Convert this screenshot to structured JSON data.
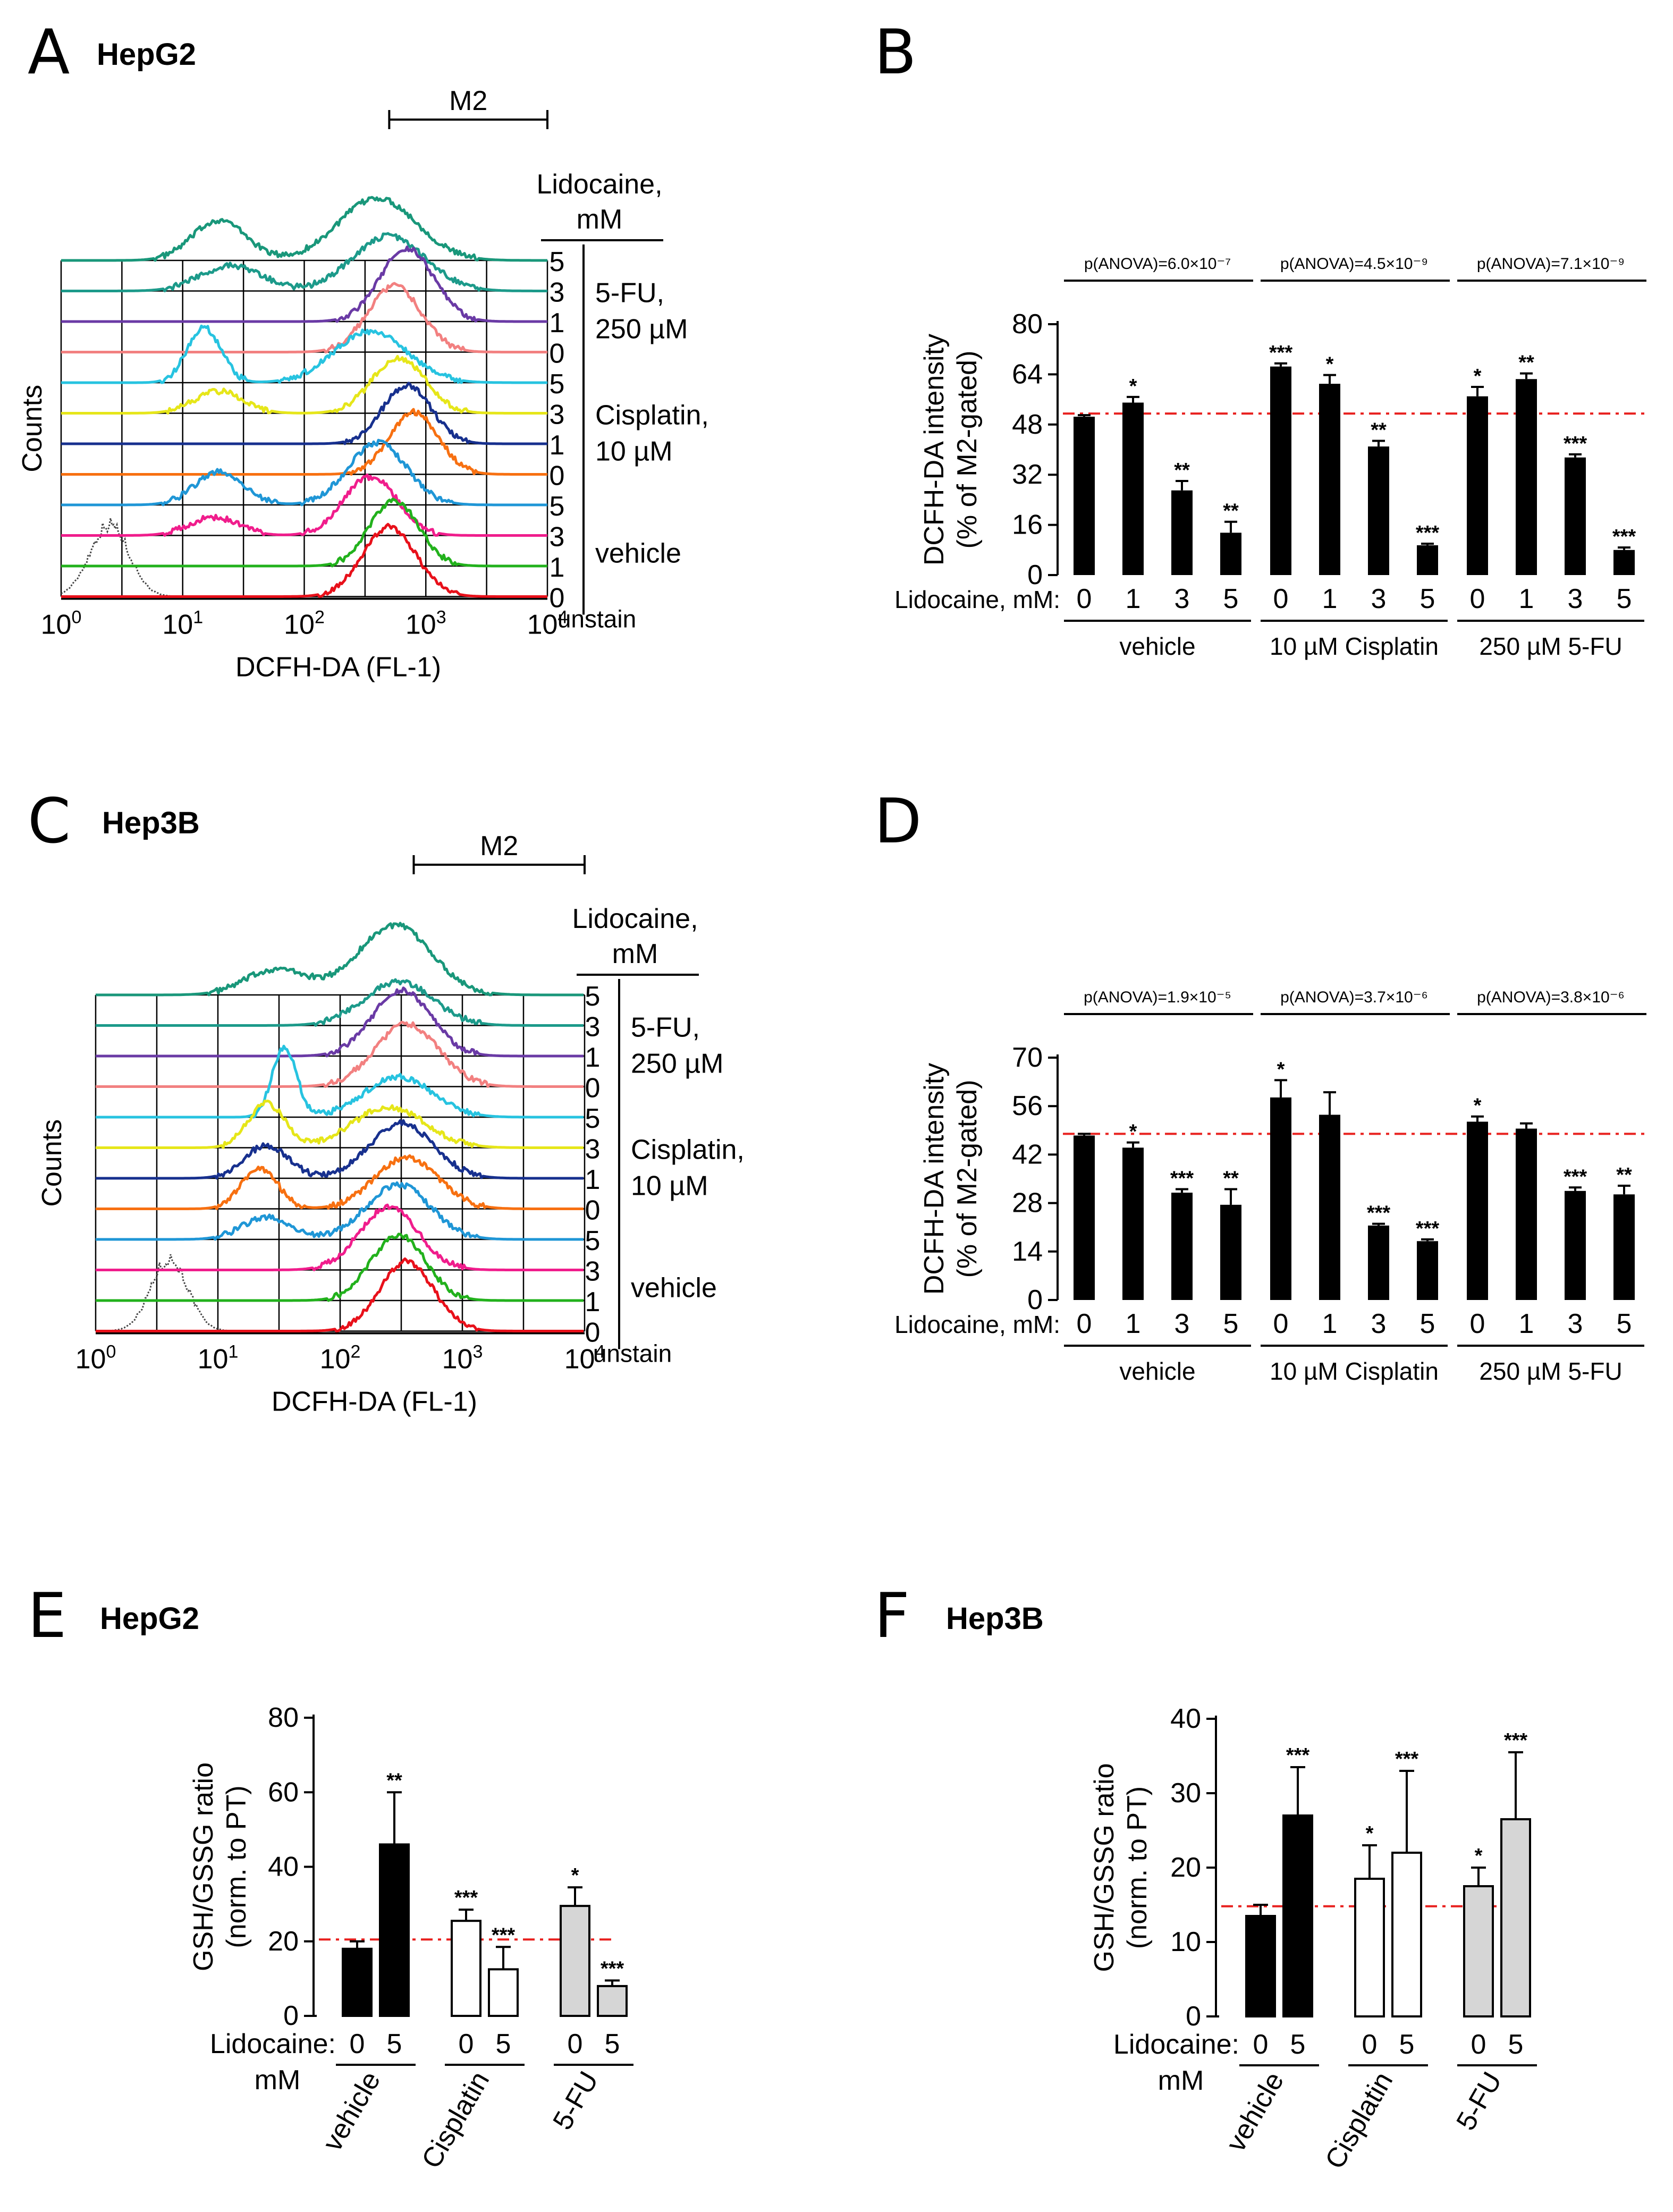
{
  "panels": {
    "A": {
      "letter": "A",
      "title": "HepG2"
    },
    "B": {
      "letter": "B"
    },
    "C": {
      "letter": "C",
      "title": "Hep3B"
    },
    "D": {
      "letter": "D"
    },
    "E": {
      "letter": "E",
      "title": "HepG2"
    },
    "F": {
      "letter": "F",
      "title": "Hep3B"
    }
  },
  "colors": {
    "vehicle_0": "#e8101a",
    "vehicle_1": "#22b11c",
    "vehicle_3": "#f01d8c",
    "vehicle_5": "#1f96d6",
    "cisplatin_0": "#f77011",
    "cisplatin_1": "#17308e",
    "cisplatin_3": "#e6e619",
    "cisplatin_5": "#27c3e0",
    "fu_0": "#f28080",
    "fu_1": "#6a3aa5",
    "fu_3": "#1c9a8a",
    "fu_5": "#19977a",
    "unstain": "#444444",
    "bar_black": "#000000",
    "bar_white": "#ffffff",
    "bar_gray": "#d6d6d6",
    "reference_line": "#e8201e"
  },
  "chart_data": [
    {
      "panel": "A",
      "type": "histogram",
      "title": "HepG2",
      "xlabel": "DCFH-DA (FL-1)",
      "ylabel": "Counts",
      "x_scale": "log",
      "xlim": [
        1,
        10000
      ],
      "x_tick_labels": [
        "10^0",
        "10^1",
        "10^2",
        "10^3",
        "10^4"
      ],
      "gate": {
        "label": "M2",
        "range": [
          500,
          10000
        ]
      },
      "legend_header": "Lidocaine, mM",
      "legend_groups": [
        {
          "label_1": "5-FU,",
          "label_2": "250 µM",
          "doses": [
            "5",
            "3",
            "1",
            "0"
          ]
        },
        {
          "label_1": "Cisplatin,",
          "label_2": "10 µM",
          "doses": [
            "5",
            "3",
            "1",
            "0"
          ]
        },
        {
          "label_1": "vehicle",
          "label_2": "",
          "doses": [
            "5",
            "3",
            "1",
            "0"
          ]
        }
      ],
      "unstain_label": "unstain",
      "series": [
        {
          "name": "5-FU 5 mM",
          "color_key": "fu_5",
          "peaks": [
            {
              "center": 20,
              "height": 0.55,
              "width": 0.22
            },
            {
              "center": 400,
              "height": 0.85,
              "width": 0.32
            }
          ]
        },
        {
          "name": "5-FU 3 mM",
          "color_key": "fu_3",
          "peaks": [
            {
              "center": 25,
              "height": 0.35,
              "width": 0.25
            },
            {
              "center": 500,
              "height": 0.75,
              "width": 0.3
            }
          ]
        },
        {
          "name": "5-FU 1 mM",
          "color_key": "fu_1",
          "peaks": [
            {
              "center": 700,
              "height": 1.0,
              "width": 0.22
            }
          ]
        },
        {
          "name": "5-FU 0 mM",
          "color_key": "fu_0",
          "peaks": [
            {
              "center": 550,
              "height": 0.9,
              "width": 0.22
            }
          ]
        },
        {
          "name": "Cisplatin 5 mM",
          "color_key": "cisplatin_5",
          "peaks": [
            {
              "center": 15,
              "height": 0.75,
              "width": 0.14
            },
            {
              "center": 350,
              "height": 0.7,
              "width": 0.3
            }
          ]
        },
        {
          "name": "Cisplatin 3 mM",
          "color_key": "cisplatin_3",
          "peaks": [
            {
              "center": 20,
              "height": 0.3,
              "width": 0.2
            },
            {
              "center": 600,
              "height": 0.75,
              "width": 0.22
            }
          ]
        },
        {
          "name": "Cisplatin 1 mM",
          "color_key": "cisplatin_1",
          "peaks": [
            {
              "center": 700,
              "height": 0.8,
              "width": 0.2
            }
          ]
        },
        {
          "name": "Cisplatin 0 mM",
          "color_key": "cisplatin_0",
          "peaks": [
            {
              "center": 800,
              "height": 0.85,
              "width": 0.2
            }
          ]
        },
        {
          "name": "vehicle 5 mM",
          "color_key": "vehicle_5",
          "peaks": [
            {
              "center": 20,
              "height": 0.45,
              "width": 0.2
            },
            {
              "center": 400,
              "height": 0.85,
              "width": 0.24
            }
          ]
        },
        {
          "name": "vehicle 3 mM",
          "color_key": "vehicle_3",
          "peaks": [
            {
              "center": 18,
              "height": 0.25,
              "width": 0.2
            },
            {
              "center": 350,
              "height": 0.8,
              "width": 0.22
            }
          ]
        },
        {
          "name": "vehicle 1 mM",
          "color_key": "vehicle_1",
          "peaks": [
            {
              "center": 550,
              "height": 0.9,
              "width": 0.2
            }
          ]
        },
        {
          "name": "vehicle 0 mM",
          "color_key": "vehicle_0",
          "peaks": [
            {
              "center": 500,
              "height": 0.95,
              "width": 0.22
            }
          ]
        }
      ],
      "unstain": {
        "center": 2.5,
        "height": 1.0,
        "width": 0.16
      }
    },
    {
      "panel": "B",
      "type": "bar",
      "ylabel_1": "DCFH-DA intensity",
      "ylabel_2": "(% of M2-gated)",
      "ylim": [
        0,
        80
      ],
      "yticks": [
        0,
        16,
        32,
        48,
        64,
        80
      ],
      "x_prefix": "Lidocaine, mM:",
      "categories": [
        "0",
        "1",
        "3",
        "5",
        "0",
        "1",
        "3",
        "5",
        "0",
        "1",
        "3",
        "5"
      ],
      "values": [
        50.5,
        55,
        27,
        13.5,
        66.5,
        61,
        41,
        9.5,
        57,
        62.5,
        37.5,
        8
      ],
      "errors": [
        0.5,
        1.8,
        3,
        3.5,
        1,
        2.8,
        1.8,
        0.5,
        3,
        1.8,
        1,
        0.8
      ],
      "annotations": [
        "",
        "*",
        "**",
        "**",
        "***",
        "*",
        "**",
        "***",
        "*",
        "**",
        "***",
        "***"
      ],
      "reference_line": 51.5,
      "groups": [
        {
          "label": "vehicle",
          "anova": "p(ANOVA)=6.0×10⁻⁷"
        },
        {
          "label": "10 µM Cisplatin",
          "anova": "p(ANOVA)=4.5×10⁻⁹"
        },
        {
          "label": "250 µM 5-FU",
          "anova": "p(ANOVA)=7.1×10⁻⁹"
        }
      ]
    },
    {
      "panel": "C",
      "type": "histogram",
      "title": "Hep3B",
      "xlabel": "DCFH-DA (FL-1)",
      "ylabel": "Counts",
      "x_scale": "log",
      "xlim": [
        1,
        10000
      ],
      "x_tick_labels": [
        "10^0",
        "10^1",
        "10^2",
        "10^3",
        "10^4"
      ],
      "gate": {
        "label": "M2",
        "range": [
          400,
          10000
        ]
      },
      "legend_header": "Lidocaine, mM",
      "legend_groups": [
        {
          "label_1": "5-FU,",
          "label_2": "250 µM",
          "doses": [
            "5",
            "3",
            "1",
            "0"
          ]
        },
        {
          "label_1": "Cisplatin,",
          "label_2": "10 µM",
          "doses": [
            "5",
            "3",
            "1",
            "0"
          ]
        },
        {
          "label_1": "vehicle",
          "label_2": "",
          "doses": [
            "5",
            "3",
            "1",
            "0"
          ]
        }
      ],
      "unstain_label": "unstain",
      "series": [
        {
          "name": "5-FU 5 mM",
          "color_key": "fu_5",
          "peaks": [
            {
              "center": 30,
              "height": 0.35,
              "width": 0.25
            },
            {
              "center": 280,
              "height": 0.95,
              "width": 0.3
            }
          ]
        },
        {
          "name": "5-FU 3 mM",
          "color_key": "fu_3",
          "peaks": [
            {
              "center": 300,
              "height": 0.6,
              "width": 0.28
            }
          ]
        },
        {
          "name": "5-FU 1 mM",
          "color_key": "fu_1",
          "peaks": [
            {
              "center": 320,
              "height": 0.9,
              "width": 0.24
            }
          ]
        },
        {
          "name": "5-FU 0 mM",
          "color_key": "fu_0",
          "peaks": [
            {
              "center": 350,
              "height": 0.85,
              "width": 0.26
            }
          ]
        },
        {
          "name": "Cisplatin 5 mM",
          "color_key": "cisplatin_5",
          "peaks": [
            {
              "center": 35,
              "height": 0.95,
              "width": 0.1
            },
            {
              "center": 300,
              "height": 0.55,
              "width": 0.28
            }
          ]
        },
        {
          "name": "Cisplatin 3 mM",
          "color_key": "cisplatin_3",
          "peaks": [
            {
              "center": 25,
              "height": 0.6,
              "width": 0.15
            },
            {
              "center": 250,
              "height": 0.55,
              "width": 0.3
            }
          ]
        },
        {
          "name": "Cisplatin 1 mM",
          "color_key": "cisplatin_1",
          "peaks": [
            {
              "center": 25,
              "height": 0.45,
              "width": 0.18
            },
            {
              "center": 320,
              "height": 0.75,
              "width": 0.26
            }
          ]
        },
        {
          "name": "Cisplatin 0 mM",
          "color_key": "cisplatin_0",
          "peaks": [
            {
              "center": 22,
              "height": 0.55,
              "width": 0.15
            },
            {
              "center": 350,
              "height": 0.7,
              "width": 0.26
            }
          ]
        },
        {
          "name": "vehicle 5 mM",
          "color_key": "vehicle_5",
          "peaks": [
            {
              "center": 25,
              "height": 0.3,
              "width": 0.2
            },
            {
              "center": 300,
              "height": 0.75,
              "width": 0.26
            }
          ]
        },
        {
          "name": "vehicle 3 mM",
          "color_key": "vehicle_3",
          "peaks": [
            {
              "center": 250,
              "height": 0.85,
              "width": 0.24
            }
          ]
        },
        {
          "name": "vehicle 1 mM",
          "color_key": "vehicle_1",
          "peaks": [
            {
              "center": 300,
              "height": 0.9,
              "width": 0.22
            }
          ]
        },
        {
          "name": "vehicle 0 mM",
          "color_key": "vehicle_0",
          "peaks": [
            {
              "center": 350,
              "height": 0.95,
              "width": 0.22
            }
          ]
        }
      ],
      "unstain": {
        "center": 4,
        "height": 1.0,
        "width": 0.15
      }
    },
    {
      "panel": "D",
      "type": "bar",
      "ylabel_1": "DCFH-DA intensity",
      "ylabel_2": "(% of M2-gated)",
      "ylim": [
        0,
        70
      ],
      "yticks": [
        0,
        14,
        28,
        42,
        56,
        70
      ],
      "x_prefix": "Lidocaine, mM:",
      "categories": [
        "0",
        "1",
        "3",
        "5",
        "0",
        "1",
        "3",
        "5",
        "0",
        "1",
        "3",
        "5"
      ],
      "values": [
        47.5,
        44,
        31,
        27.5,
        58.5,
        53.5,
        21.5,
        17,
        51.5,
        49.5,
        31.5,
        30.5
      ],
      "errors": [
        0.5,
        1.5,
        1,
        4.5,
        5,
        6.5,
        0.5,
        0.5,
        1.5,
        1.5,
        1,
        2.5
      ],
      "annotations": [
        "",
        "*",
        "***",
        "**",
        "*",
        "",
        "***",
        "***",
        "*",
        "",
        "***",
        "**"
      ],
      "reference_line": 48,
      "groups": [
        {
          "label": "vehicle",
          "anova": "p(ANOVA)=1.9×10⁻⁵"
        },
        {
          "label": "10 µM Cisplatin",
          "anova": "p(ANOVA)=3.7×10⁻⁶"
        },
        {
          "label": "250 µM 5-FU",
          "anova": "p(ANOVA)=3.8×10⁻⁶"
        }
      ]
    },
    {
      "panel": "E",
      "type": "bar",
      "title": "HepG2",
      "ylabel_1": "GSH/GSSG ratio",
      "ylabel_2": "(norm. to PT)",
      "ylim": [
        0,
        80
      ],
      "yticks": [
        0,
        20,
        40,
        60,
        80
      ],
      "x_prefix_1": "Lidocaine:",
      "x_prefix_2": "mM",
      "categories": [
        "0",
        "5",
        "0",
        "5",
        "0",
        "5"
      ],
      "values": [
        18,
        46,
        25.5,
        12.5,
        29.5,
        8
      ],
      "errors": [
        2,
        14,
        3,
        6,
        5,
        1.5
      ],
      "fills": [
        "black",
        "black",
        "white",
        "white",
        "gray",
        "gray"
      ],
      "annotations": [
        "",
        "**",
        "***",
        "***",
        "*",
        "***"
      ],
      "reference_line": 20.5,
      "groups": [
        "vehicle",
        "Cisplatin",
        "5-FU"
      ]
    },
    {
      "panel": "F",
      "type": "bar",
      "title": "Hep3B",
      "ylabel_1": "GSH/GSSG ratio",
      "ylabel_2": "(norm. to PT)",
      "ylim": [
        0,
        40
      ],
      "yticks": [
        0,
        10,
        20,
        30,
        40
      ],
      "x_prefix_1": "Lidocaine:",
      "x_prefix_2": "mM",
      "categories": [
        "0",
        "5",
        "0",
        "5",
        "0",
        "5"
      ],
      "values": [
        13.5,
        27,
        18.5,
        22,
        17.5,
        26.5
      ],
      "errors": [
        1.5,
        6.5,
        4.5,
        11,
        2.5,
        9
      ],
      "fills": [
        "black",
        "black",
        "white",
        "white",
        "gray",
        "gray"
      ],
      "annotations": [
        "",
        "***",
        "*",
        "***",
        "*",
        "***"
      ],
      "reference_line": 14.8,
      "groups": [
        "vehicle",
        "Cisplatin",
        "5-FU"
      ]
    }
  ]
}
